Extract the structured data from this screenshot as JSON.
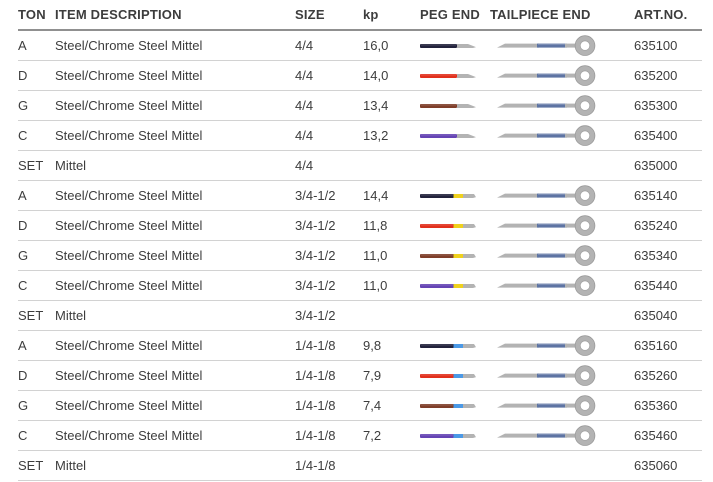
{
  "page": {
    "background": "#ffffff"
  },
  "table": {
    "headers": [
      {
        "key": "ton",
        "label": "TON"
      },
      {
        "key": "item",
        "label": "ITEM DESCRIPTION"
      },
      {
        "key": "size",
        "label": "SIZE"
      },
      {
        "key": "kp",
        "label": "kp"
      },
      {
        "key": "peg",
        "label": "PEG END"
      },
      {
        "key": "tail",
        "label": "TAILPIECE END"
      },
      {
        "key": "art",
        "label": "ART.NO."
      }
    ],
    "colors": {
      "string_navy": "#22223c",
      "string_red": "#e1301d",
      "string_brown": "#7f3e2a",
      "string_purple": "#6544b4",
      "band_yellow": "#efd11c",
      "band_blue": "#4a99e6",
      "tail_winding_blue": "#5e74a3",
      "string_gray": "#b3b3b3",
      "text": "#3d3d3d",
      "header_rule": "#909090",
      "row_rule": "#d2d2d2"
    },
    "rows": [
      {
        "ton": "A",
        "item": "Steel/Chrome Steel Mittel",
        "size": "4/4",
        "kp": "16,0",
        "art": "635100",
        "has_string_graphics": true,
        "peg_color": "string_navy",
        "peg_band": null
      },
      {
        "ton": "D",
        "item": "Steel/Chrome Steel Mittel",
        "size": "4/4",
        "kp": "14,0",
        "art": "635200",
        "has_string_graphics": true,
        "peg_color": "string_red",
        "peg_band": null
      },
      {
        "ton": "G",
        "item": "Steel/Chrome Steel Mittel",
        "size": "4/4",
        "kp": "13,4",
        "art": "635300",
        "has_string_graphics": true,
        "peg_color": "string_brown",
        "peg_band": null
      },
      {
        "ton": "C",
        "item": "Steel/Chrome Steel Mittel",
        "size": "4/4",
        "kp": "13,2",
        "art": "635400",
        "has_string_graphics": true,
        "peg_color": "string_purple",
        "peg_band": null
      },
      {
        "ton": "SET",
        "item": "Mittel",
        "size": "4/4",
        "kp": "",
        "art": "635000",
        "has_string_graphics": false,
        "peg_color": null,
        "peg_band": null
      },
      {
        "ton": "A",
        "item": "Steel/Chrome Steel Mittel",
        "size": "3/4-1/2",
        "kp": "14,4",
        "art": "635140",
        "has_string_graphics": true,
        "peg_color": "string_navy",
        "peg_band": "band_yellow"
      },
      {
        "ton": "D",
        "item": "Steel/Chrome Steel Mittel",
        "size": "3/4-1/2",
        "kp": "11,8",
        "art": "635240",
        "has_string_graphics": true,
        "peg_color": "string_red",
        "peg_band": "band_yellow"
      },
      {
        "ton": "G",
        "item": "Steel/Chrome Steel Mittel",
        "size": "3/4-1/2",
        "kp": "11,0",
        "art": "635340",
        "has_string_graphics": true,
        "peg_color": "string_brown",
        "peg_band": "band_yellow"
      },
      {
        "ton": "C",
        "item": "Steel/Chrome Steel Mittel",
        "size": "3/4-1/2",
        "kp": "11,0",
        "art": "635440",
        "has_string_graphics": true,
        "peg_color": "string_purple",
        "peg_band": "band_yellow"
      },
      {
        "ton": "SET",
        "item": "Mittel",
        "size": "3/4-1/2",
        "kp": "",
        "art": "635040",
        "has_string_graphics": false,
        "peg_color": null,
        "peg_band": null
      },
      {
        "ton": "A",
        "item": "Steel/Chrome Steel Mittel",
        "size": "1/4-1/8",
        "kp": "9,8",
        "art": "635160",
        "has_string_graphics": true,
        "peg_color": "string_navy",
        "peg_band": "band_blue"
      },
      {
        "ton": "D",
        "item": "Steel/Chrome Steel Mittel",
        "size": "1/4-1/8",
        "kp": "7,9",
        "art": "635260",
        "has_string_graphics": true,
        "peg_color": "string_red",
        "peg_band": "band_blue"
      },
      {
        "ton": "G",
        "item": "Steel/Chrome Steel Mittel",
        "size": "1/4-1/8",
        "kp": "7,4",
        "art": "635360",
        "has_string_graphics": true,
        "peg_color": "string_brown",
        "peg_band": "band_blue"
      },
      {
        "ton": "C",
        "item": "Steel/Chrome Steel Mittel",
        "size": "1/4-1/8",
        "kp": "7,2",
        "art": "635460",
        "has_string_graphics": true,
        "peg_color": "string_purple",
        "peg_band": "band_blue"
      },
      {
        "ton": "SET",
        "item": "Mittel",
        "size": "1/4-1/8",
        "kp": "",
        "art": "635060",
        "has_string_graphics": false,
        "peg_color": null,
        "peg_band": null
      }
    ]
  }
}
